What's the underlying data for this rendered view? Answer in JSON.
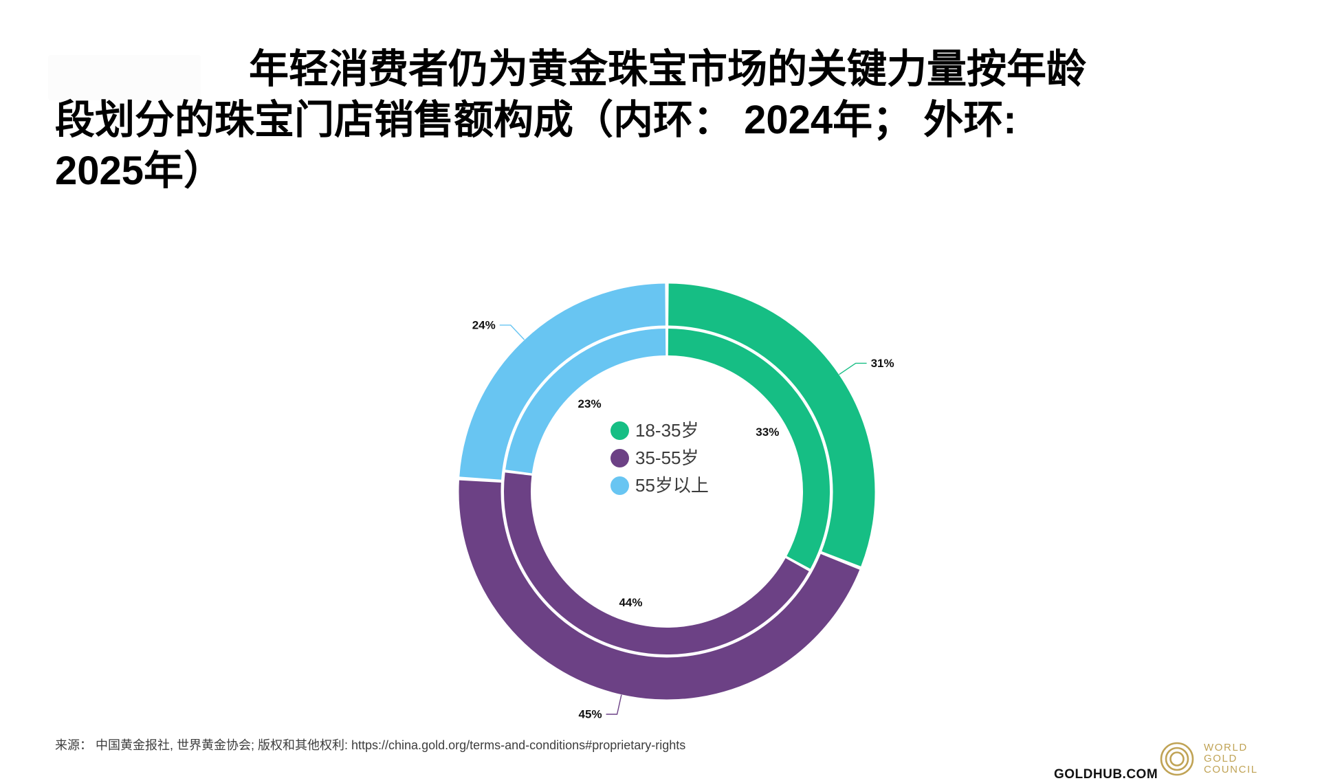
{
  "title": {
    "line1": "年轻消费者仍为黄金珠宝市场的关键力量按年龄",
    "line2": "段划分的珠宝门店销售额构成（内环： 2024年； 外环:",
    "line3": "2025年）"
  },
  "chart_data": {
    "type": "donut",
    "title": "按年龄段划分的珠宝门店销售额构成（内环：2024年；外环：2025年）",
    "unit": "%",
    "categories": [
      "18-35岁",
      "35-55岁",
      "55岁以上"
    ],
    "colors": [
      "#16be84",
      "#6c4185",
      "#68c5f2"
    ],
    "series": [
      {
        "name": "2024年（内环）",
        "ring": "inner",
        "values": [
          33,
          44,
          23
        ]
      },
      {
        "name": "2025年（外环）",
        "ring": "outer",
        "values": [
          31,
          45,
          24
        ]
      }
    ],
    "start_angle_deg": 0,
    "direction": "clockwise",
    "legend_position": "center",
    "outer_labels": [
      "31%",
      "45%",
      "24%"
    ],
    "inner_labels": [
      "33%",
      "44%",
      "23%"
    ]
  },
  "source": {
    "text": "来源： 中国黄金报社, 世界黄金协会; 版权和其他权利: https://china.gold.org/terms-and-conditions#proprietary-rights"
  },
  "footer": {
    "goldhub": "GOLDHUB.COM",
    "logo_lines": [
      "WORLD",
      "GOLD",
      "COUNCIL"
    ],
    "logo_color": "#c0a355"
  }
}
